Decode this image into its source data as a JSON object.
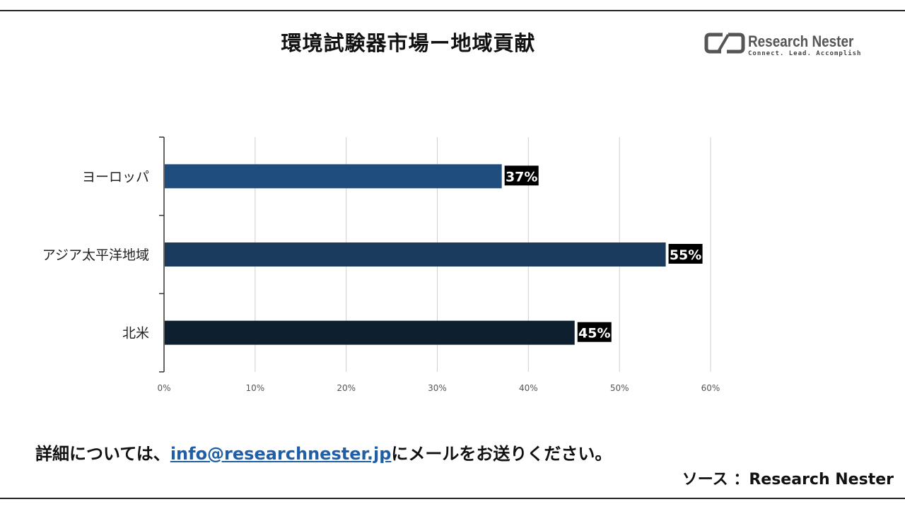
{
  "title": "環境試験器市場ー地域貢献",
  "logo": {
    "name": "Research Nester",
    "tagline": "Connect. Lead. Accomplish"
  },
  "chart_data": {
    "type": "bar",
    "orientation": "horizontal",
    "title": "環境試験器市場ー地域貢献",
    "categories": [
      "ヨーロッパ",
      "アジア太平洋地域",
      "北米"
    ],
    "values": [
      37,
      55,
      45
    ],
    "value_labels": [
      "37%",
      "55%",
      "45%"
    ],
    "bar_colors": [
      "#1f4e7e",
      "#1a3a5e",
      "#0e1f30"
    ],
    "xlim": [
      0,
      60
    ],
    "xticks": [
      "0%",
      "10%",
      "20%",
      "30%",
      "40%",
      "50%",
      "60%"
    ],
    "grid": true,
    "legend": "none"
  },
  "footer": {
    "before": "詳細については、",
    "email": "info@researchnester.jp",
    "after": "にメールをお送りください。"
  },
  "source": "ソース ：Research Nester"
}
